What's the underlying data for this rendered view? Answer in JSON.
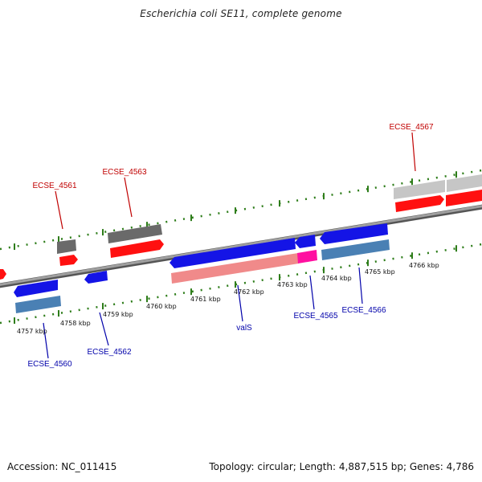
{
  "title": "Escherichia coli SE11, complete genome",
  "footer": {
    "accession": "Accession: NC_011415",
    "summary": "Topology: circular; Length: 4,887,515 bp; Genes: 4,786"
  },
  "colors": {
    "backbone": "#8c8c8c",
    "tick": "#2e7d1a",
    "forward_label": "#c00000",
    "reverse_label": "#0000aa",
    "gene_red": "#ff1010",
    "gene_dark_gray": "#6a6a6a",
    "gene_light_gray": "#c6c6c6",
    "gene_blue": "#1414e6",
    "gene_steel": "#4a80b4",
    "gene_pink": "#f08a8a",
    "gene_magenta": "#ff10a0"
  },
  "kbp_ticks": [
    "4757 kbp",
    "4758 kbp",
    "4759 kbp",
    "4760 kbp",
    "4761 kbp",
    "4762 kbp",
    "4763 kbp",
    "4764 kbp",
    "4765 kbp",
    "4766 kbp"
  ],
  "gene_labels": {
    "forward": [
      "ECSE_4561",
      "ECSE_4563",
      "ECSE_4567"
    ],
    "reverse": [
      "ECSE_4560",
      "ECSE_4562",
      "valS",
      "ECSE_4565",
      "ECSE_4566"
    ]
  }
}
